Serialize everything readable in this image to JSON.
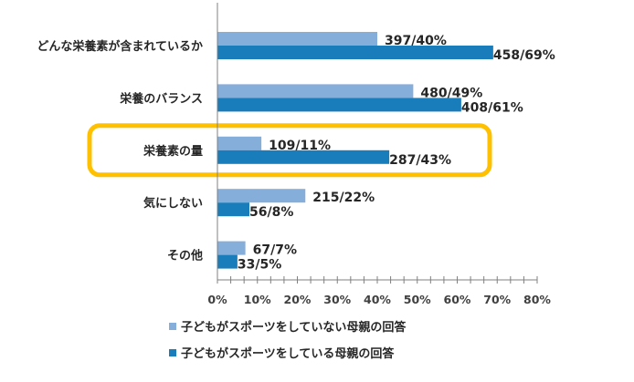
{
  "chart_data": {
    "type": "bar",
    "orientation": "horizontal",
    "categories": [
      "どんな栄養素が含まれているか",
      "栄養のバランス",
      "栄養素の量",
      "気にしない",
      "その他"
    ],
    "series": [
      {
        "name": "子どもがスポーツをしていない母親の回答",
        "color": "#86AEDB",
        "values": [
          40,
          49,
          11,
          22,
          7
        ],
        "labels": [
          "397/40%",
          "480/49%",
          "109/11%",
          "215/22%",
          "67/7%"
        ]
      },
      {
        "name": "子どもがスポーツをしている母親の回答",
        "color": "#1A7DBB",
        "values": [
          69,
          61,
          43,
          8,
          5
        ],
        "labels": [
          "458/69%",
          "408/61%",
          "287/43%",
          "56/8%",
          "33/5%"
        ]
      }
    ],
    "xlim": [
      0,
      80
    ],
    "xticks": [
      "0%",
      "10%",
      "20%",
      "30%",
      "40%",
      "50%",
      "60%",
      "70%",
      "80%"
    ],
    "grid": false,
    "legend_placement": "bottom",
    "highlight": {
      "category": "栄養素の量",
      "color": "#FFC000"
    }
  }
}
